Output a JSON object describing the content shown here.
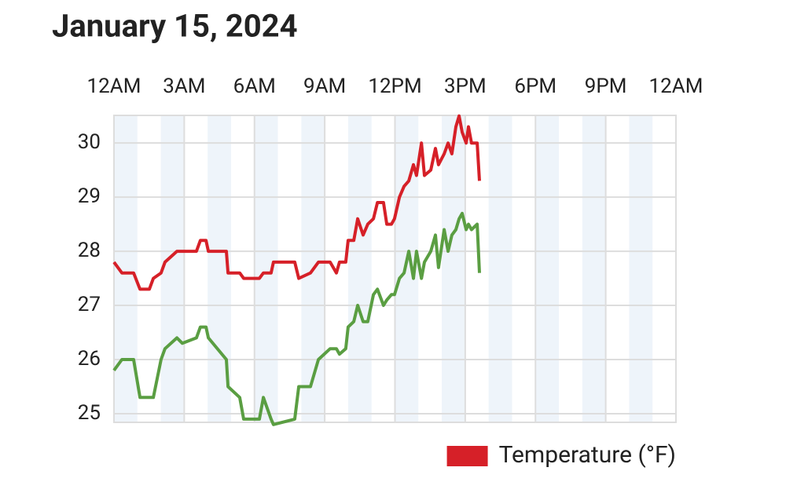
{
  "chart_data": {
    "type": "line",
    "title": "January 15, 2024",
    "x": [
      0,
      0.34,
      0.84,
      1.11,
      1.51,
      1.68,
      2.01,
      2.18,
      2.69,
      2.92,
      3.52,
      3.69,
      3.93,
      4.03,
      4.8,
      4.87,
      5.37,
      5.54,
      6.21,
      6.38,
      6.71,
      6.81,
      7.72,
      7.89,
      8.39,
      8.73,
      9.23,
      9.5,
      9.63,
      9.9,
      10.0,
      10.24,
      10.41,
      10.64,
      10.84,
      11.08,
      11.25,
      11.51,
      11.65,
      11.85,
      11.98,
      12.19,
      12.39,
      12.59,
      12.79,
      12.92,
      13.13,
      13.26,
      13.53,
      13.73,
      13.86,
      14.1,
      14.27,
      14.43,
      14.6,
      14.74,
      14.87,
      15.04,
      15.14,
      15.27,
      15.51,
      15.61
    ],
    "series": [
      {
        "name": "Temperature (°F)",
        "color": "#d62028",
        "values": [
          27.8,
          27.6,
          27.6,
          27.3,
          27.3,
          27.5,
          27.6,
          27.8,
          28.0,
          28.0,
          28.0,
          28.2,
          28.2,
          28.0,
          28.0,
          27.6,
          27.6,
          27.5,
          27.5,
          27.6,
          27.6,
          27.8,
          27.8,
          27.5,
          27.6,
          27.8,
          27.8,
          27.6,
          27.8,
          27.8,
          28.2,
          28.2,
          28.6,
          28.3,
          28.5,
          28.6,
          28.9,
          28.9,
          28.5,
          28.5,
          28.6,
          29.0,
          29.2,
          29.3,
          29.6,
          29.4,
          30.0,
          29.4,
          29.5,
          29.9,
          29.6,
          29.8,
          30.0,
          29.8,
          30.3,
          30.5,
          30.2,
          30.0,
          30.3,
          30.0,
          30.0,
          29.3
        ]
      },
      {
        "color": "#5a9e42",
        "values": [
          25.8,
          26.0,
          26.0,
          25.3,
          25.3,
          25.3,
          26.0,
          26.2,
          26.4,
          26.3,
          26.4,
          26.6,
          26.6,
          26.4,
          26.0,
          25.5,
          25.3,
          24.9,
          24.9,
          25.3,
          24.9,
          24.8,
          24.9,
          25.5,
          25.5,
          26.0,
          26.2,
          26.2,
          26.1,
          26.2,
          26.6,
          26.7,
          27.0,
          26.7,
          26.7,
          27.2,
          27.3,
          27.0,
          27.1,
          27.2,
          27.2,
          27.5,
          27.6,
          28.0,
          27.5,
          28.0,
          27.5,
          27.8,
          28.0,
          28.3,
          27.7,
          28.4,
          28.0,
          28.3,
          28.4,
          28.6,
          28.7,
          28.4,
          28.5,
          28.4,
          28.5,
          27.6
        ]
      }
    ],
    "xlim": [
      0,
      24
    ],
    "xticks": [
      {
        "value": 0,
        "label": "12AM"
      },
      {
        "value": 3,
        "label": "3AM"
      },
      {
        "value": 6,
        "label": "6AM"
      },
      {
        "value": 9,
        "label": "9AM"
      },
      {
        "value": 12,
        "label": "12PM"
      },
      {
        "value": 15,
        "label": "3PM"
      },
      {
        "value": 18,
        "label": "6PM"
      },
      {
        "value": 21,
        "label": "9PM"
      },
      {
        "value": 24,
        "label": "12AM"
      }
    ],
    "ylim": [
      24.84,
      30.51
    ],
    "yticks": [
      25,
      26,
      27,
      28,
      29,
      30
    ],
    "grid": true,
    "legend": "bottom-right"
  }
}
